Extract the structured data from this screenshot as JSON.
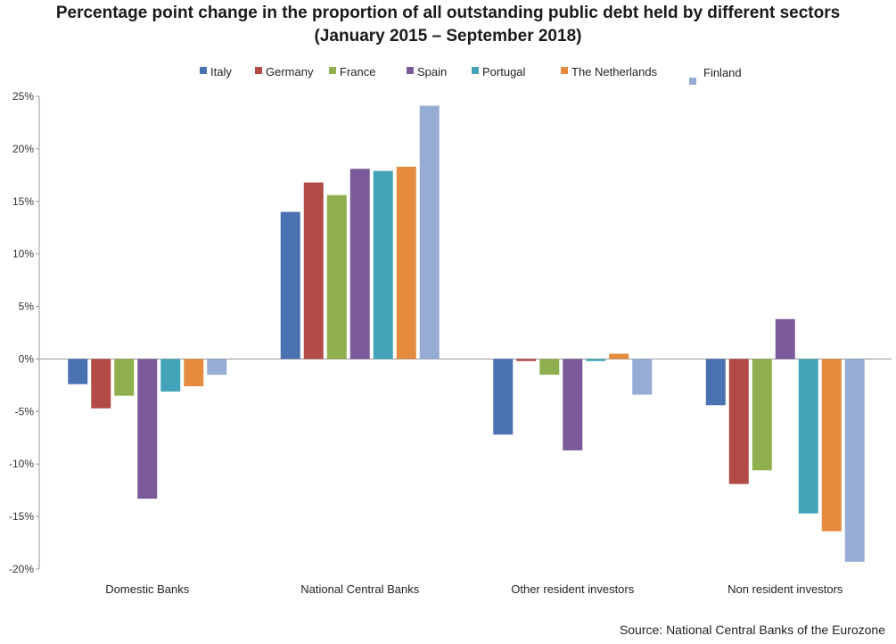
{
  "title_line1": "Percentage point change in the proportion of all outstanding public debt held by different sectors",
  "title_line2": "(January 2015 – September 2018)",
  "source": "Source: National Central Banks of the Eurozone",
  "chart_data": {
    "type": "bar",
    "title": "Percentage point change in the proportion of all outstanding public debt held by different sectors (January 2015 – September 2018)",
    "categories": [
      "Domestic Banks",
      "National Central Banks",
      "Other resident investors",
      "Non resident investors"
    ],
    "series": [
      {
        "name": "Italy",
        "color": "#4a72b0",
        "values": [
          -2.4,
          14.0,
          -7.2,
          -4.4
        ]
      },
      {
        "name": "Germany",
        "color": "#b24a46",
        "values": [
          -4.7,
          16.8,
          -0.2,
          -11.9
        ]
      },
      {
        "name": "France",
        "color": "#8faf4f",
        "values": [
          -3.5,
          15.6,
          -1.5,
          -10.6
        ]
      },
      {
        "name": "Spain",
        "color": "#7a5a9a",
        "values": [
          -13.3,
          18.1,
          -8.7,
          3.8
        ]
      },
      {
        "name": "Portugal",
        "color": "#43a3b9",
        "values": [
          -3.1,
          17.9,
          -0.2,
          -14.7
        ]
      },
      {
        "name": "The Netherlands",
        "color": "#e48b3e",
        "values": [
          -2.6,
          18.3,
          0.5,
          -16.4
        ]
      },
      {
        "name": "Finland",
        "color": "#96acd5",
        "values": [
          -1.5,
          24.1,
          -3.4,
          -19.3
        ]
      }
    ],
    "yticks": [
      "25%",
      "20%",
      "15%",
      "10%",
      "5%",
      "0%",
      "-5%",
      "-10%",
      "-15%",
      "-20%"
    ],
    "ylim": [
      -20,
      25
    ],
    "ylabel": "",
    "xlabel": "",
    "grid": false,
    "legend_position": "top"
  }
}
